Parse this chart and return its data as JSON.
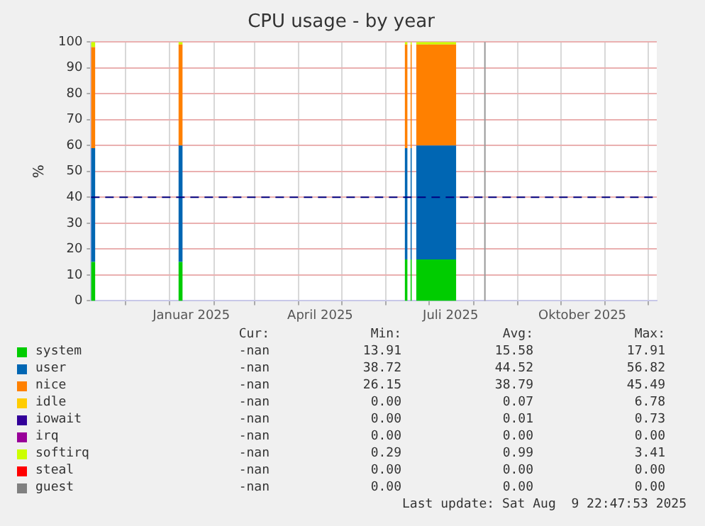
{
  "chart_data": {
    "type": "area",
    "title": "CPU usage - by year",
    "ylabel": "%",
    "stacked": true,
    "grid": true,
    "legend": "bottom",
    "x": [
      "2024-11-07",
      "2024-11-10",
      "2024-11-11",
      "2025-01-07",
      "2025-01-10",
      "2025-01-11",
      "2025-06-14",
      "2025-06-16",
      "2025-06-17",
      "2025-06-18",
      "2025-06-19",
      "2025-06-20",
      "2025-06-22",
      "2025-07-20"
    ],
    "xlim": [
      "2024-11-07",
      "2025-12-07"
    ],
    "xticks": [
      {
        "value": "2024-12-01",
        "label": null
      },
      {
        "value": "2025-01-01",
        "label": null
      },
      {
        "value": "2025-01-16",
        "label": "Januar 2025"
      },
      {
        "value": "2025-02-01",
        "label": null
      },
      {
        "value": "2025-03-01",
        "label": null
      },
      {
        "value": "2025-04-01",
        "label": null
      },
      {
        "value": "2025-04-16",
        "label": "April 2025"
      },
      {
        "value": "2025-05-01",
        "label": null
      },
      {
        "value": "2025-06-01",
        "label": null
      },
      {
        "value": "2025-07-01",
        "label": null
      },
      {
        "value": "2025-07-16",
        "label": "Juli 2025"
      },
      {
        "value": "2025-08-01",
        "label": null
      },
      {
        "value": "2025-09-01",
        "label": null
      },
      {
        "value": "2025-10-01",
        "label": null
      },
      {
        "value": "2025-10-16",
        "label": "Oktober 2025"
      },
      {
        "value": "2025-11-01",
        "label": null
      },
      {
        "value": "2025-12-01",
        "label": null
      }
    ],
    "ylim": [
      0,
      100
    ],
    "yticks": [
      0,
      10,
      20,
      30,
      40,
      50,
      60,
      70,
      80,
      90,
      100
    ],
    "series": [
      {
        "name": "system",
        "color": "#00cc00",
        "values": [
          15,
          15,
          null,
          15,
          15,
          null,
          16,
          16,
          null,
          16,
          16,
          null,
          16,
          16
        ]
      },
      {
        "name": "user",
        "color": "#0066b3",
        "values": [
          44,
          44,
          null,
          45,
          45,
          null,
          43,
          43,
          null,
          43,
          43,
          null,
          44,
          44
        ]
      },
      {
        "name": "nice",
        "color": "#ff8000",
        "values": [
          39,
          39,
          null,
          39,
          39,
          null,
          40,
          40,
          null,
          40,
          40,
          null,
          39,
          39
        ]
      },
      {
        "name": "idle",
        "color": "#ffcc00",
        "values": [
          null,
          null,
          null,
          null,
          null,
          null,
          null,
          null,
          null,
          null,
          null,
          null,
          null,
          null
        ]
      },
      {
        "name": "iowait",
        "color": "#330099",
        "values": [
          null,
          null,
          null,
          null,
          null,
          null,
          null,
          null,
          null,
          null,
          null,
          null,
          null,
          null
        ]
      },
      {
        "name": "irq",
        "color": "#990099",
        "values": [
          null,
          null,
          null,
          null,
          null,
          null,
          null,
          null,
          null,
          null,
          null,
          null,
          null,
          null
        ]
      },
      {
        "name": "softirq",
        "color": "#ccff00",
        "values": [
          2,
          2,
          null,
          1,
          1,
          null,
          1,
          1,
          null,
          1,
          1,
          null,
          1,
          1
        ]
      },
      {
        "name": "steal",
        "color": "#ff0000",
        "values": [
          null,
          null,
          null,
          null,
          null,
          null,
          null,
          null,
          null,
          null,
          null,
          null,
          null,
          null
        ]
      },
      {
        "name": "guest",
        "color": "#808080",
        "values": [
          null,
          null,
          null,
          null,
          null,
          null,
          null,
          null,
          null,
          null,
          null,
          null,
          null,
          null
        ]
      }
    ],
    "ref_lines": [
      {
        "axis": "y",
        "value": 40,
        "color": "#000080",
        "line_style": "dashed"
      },
      {
        "axis": "x",
        "value": "2025-08-09",
        "color": "#999999",
        "line_style": "solid"
      }
    ],
    "annotations": [
      "Cur:",
      "Min:",
      "Avg:",
      "Max:",
      "-nan",
      "13.91",
      "15.58",
      "17.91",
      "-nan",
      "38.72",
      "44.52",
      "56.82",
      "-nan",
      "26.15",
      "38.79",
      "45.49",
      "-nan",
      "0.00",
      "0.07",
      "6.78",
      "-nan",
      "0.00",
      "0.01",
      "0.73",
      "-nan",
      "0.00",
      "0.00",
      "0.00",
      "-nan",
      "0.29",
      "0.99",
      "3.41",
      "-nan",
      "0.00",
      "0.00",
      "0.00",
      "-nan",
      "0.00",
      "0.00",
      "0.00",
      "Last update: Sat Aug  9 22:47:53 2025"
    ]
  }
}
